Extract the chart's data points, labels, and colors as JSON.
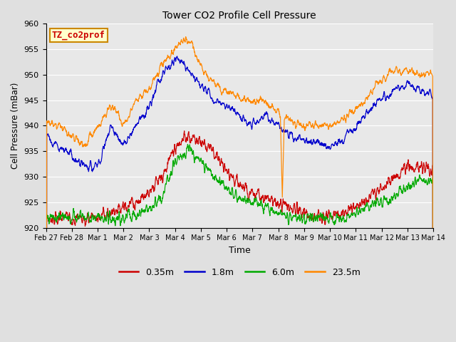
{
  "title": "Tower CO2 Profile Cell Pressure",
  "xlabel": "Time",
  "ylabel": "Cell Pressure (mBar)",
  "ylim": [
    920,
    960
  ],
  "annotation_text": "TZ_co2prof",
  "annotation_bg": "#ffffcc",
  "annotation_border": "#cc8800",
  "fig_bg": "#e0e0e0",
  "ax_bg": "#e8e8e8",
  "legend_labels": [
    "0.35m",
    "1.8m",
    "6.0m",
    "23.5m"
  ],
  "legend_colors": [
    "#cc0000",
    "#0000cc",
    "#00aa00",
    "#ff8800"
  ],
  "xtick_labels": [
    "Feb 27",
    "Feb 28",
    "Mar 1",
    "Mar 2",
    "Mar 3",
    "Mar 4",
    "Mar 5",
    "Mar 6",
    "Mar 7",
    "Mar 8",
    "Mar 9",
    "Mar 10",
    "Mar 11",
    "Mar 12",
    "Mar 13",
    "Mar 14"
  ],
  "ytick_vals": [
    920,
    925,
    930,
    935,
    940,
    945,
    950,
    955,
    960
  ],
  "n_points": 2000,
  "seed": 7
}
